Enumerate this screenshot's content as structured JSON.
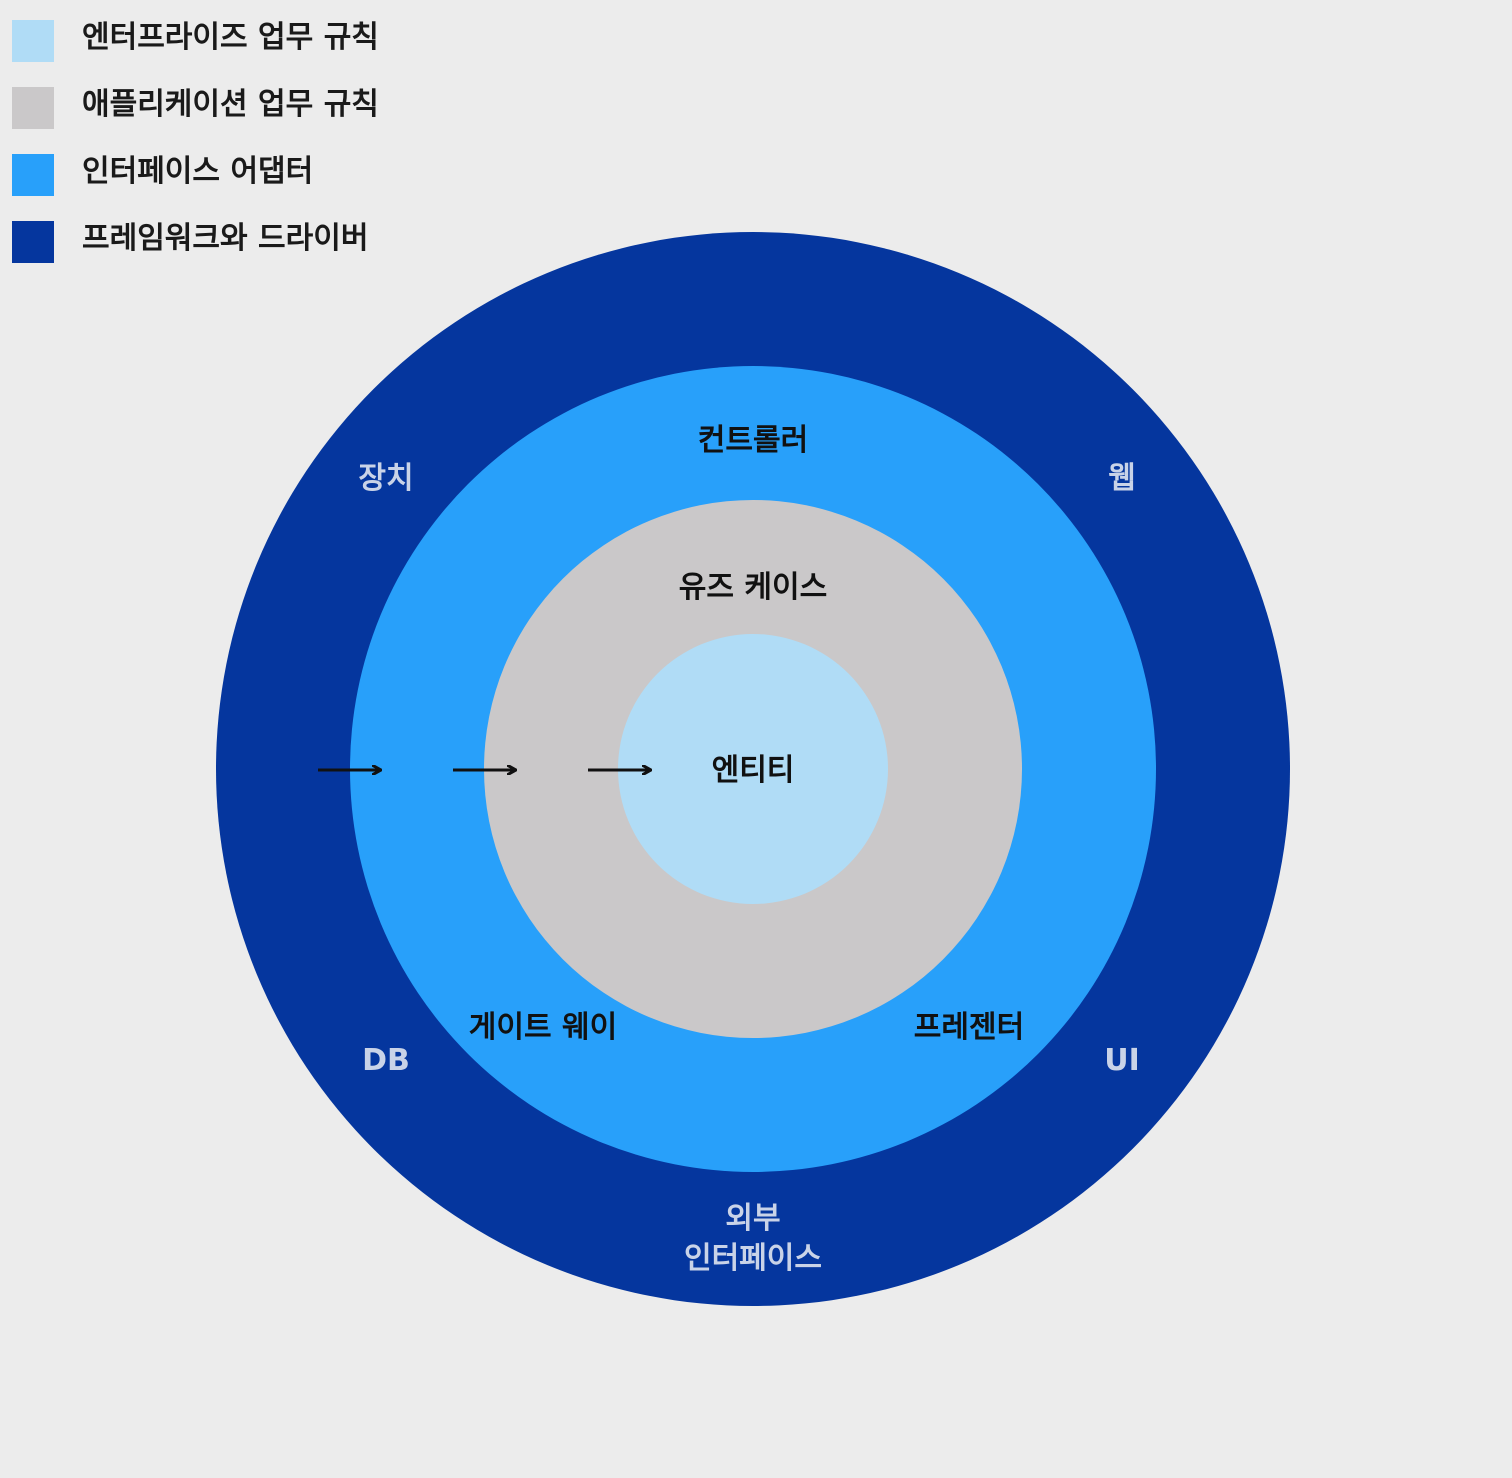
{
  "legend": {
    "items": [
      {
        "label": "엔터프라이즈 업무 규칙",
        "color": "#b0dcf6"
      },
      {
        "label": "애플리케이션 업무 규칙",
        "color": "#cac8c9"
      },
      {
        "label": "인터페이스 어댑터",
        "color": "#28a0fa"
      },
      {
        "label": "프레임워크와 드라이버",
        "color": "#05369e"
      }
    ]
  },
  "diagram": {
    "rings": {
      "outer": {
        "color": "#05369e",
        "labels": {
          "top_left": "장치",
          "top_right": "웹",
          "bottom_left": "DB",
          "bottom_right": "UI",
          "bottom_line1": "외부",
          "bottom_line2": "인터페이스"
        },
        "label_color": "#c9d3e8"
      },
      "adapters": {
        "color": "#28a0fa",
        "labels": {
          "top": "컨트롤러",
          "bottom_left": "게이트 웨이",
          "bottom_right": "프레젠터"
        }
      },
      "usecases": {
        "color": "#cac8c9",
        "labels": {
          "top": "유즈 케이스"
        }
      },
      "entities": {
        "color": "#b0dcf6",
        "labels": {
          "center": "엔티티"
        }
      }
    },
    "arrow_icon": "right-arrow-icon"
  }
}
